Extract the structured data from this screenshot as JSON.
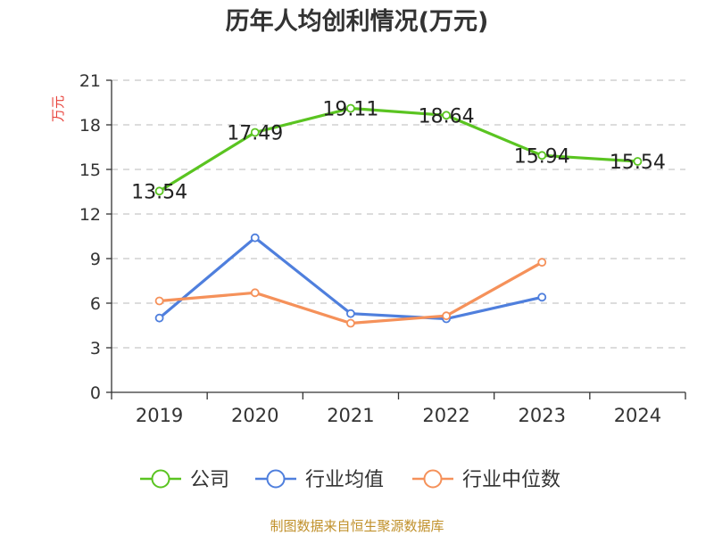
{
  "chart_data": {
    "type": "line",
    "title": "历年人均创利情况(万元)",
    "ylabel": "万元",
    "categories": [
      "2019",
      "2020",
      "2021",
      "2022",
      "2023",
      "2024"
    ],
    "ylim": [
      0,
      21
    ],
    "yticks": [
      0,
      3,
      6,
      9,
      12,
      15,
      18,
      21
    ],
    "grid": true,
    "legend_position": "bottom",
    "series": [
      {
        "name": "公司",
        "color": "#5ac421",
        "values": [
          13.54,
          17.49,
          19.11,
          18.64,
          15.94,
          15.54
        ],
        "labels": [
          "13.54",
          "17.49",
          "19.11",
          "18.64",
          "15.94",
          "15.54"
        ]
      },
      {
        "name": "行业均值",
        "color": "#4f7fdd",
        "values": [
          5.0,
          10.4,
          5.3,
          4.95,
          6.4,
          null
        ]
      },
      {
        "name": "行业中位数",
        "color": "#f5915a",
        "values": [
          6.15,
          6.7,
          4.65,
          5.15,
          8.75,
          null
        ]
      }
    ]
  },
  "source_text": "制图数据来自恒生聚源数据库"
}
